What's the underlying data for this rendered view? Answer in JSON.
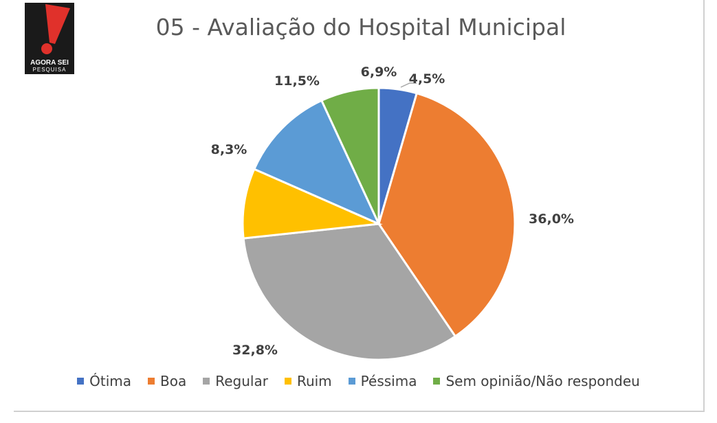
{
  "logo": {
    "brand": "AGORA SEI",
    "sub": "PESQUISA"
  },
  "chart_data": {
    "type": "pie",
    "title": "05 - Avaliação do Hospital Municipal",
    "legend_position": "bottom",
    "slices": [
      {
        "label": "Ótima",
        "value": 4.5,
        "display": "4,5%",
        "color": "#4472c4"
      },
      {
        "label": "Boa",
        "value": 36.0,
        "display": "36,0%",
        "color": "#ed7d31"
      },
      {
        "label": "Regular",
        "value": 32.8,
        "display": "32,8%",
        "color": "#a5a5a5"
      },
      {
        "label": "Ruim",
        "value": 8.3,
        "display": "8,3%",
        "color": "#ffc000"
      },
      {
        "label": "Péssima",
        "value": 11.5,
        "display": "11,5%",
        "color": "#5b9bd5"
      },
      {
        "label": "Sem opinião/Não respondeu",
        "value": 6.9,
        "display": "6,9%",
        "color": "#70ad47"
      }
    ]
  }
}
